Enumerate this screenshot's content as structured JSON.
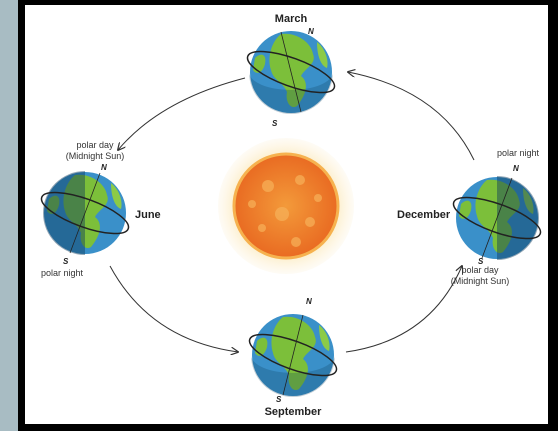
{
  "seasons": [
    {
      "label": "March",
      "north": "N",
      "south": "S"
    },
    {
      "label": "June",
      "north": "N",
      "south": "S",
      "top_note": [
        "polar day",
        "(Midnight Sun)"
      ],
      "bottom_note": [
        "polar night"
      ]
    },
    {
      "label": "September",
      "north": "N",
      "south": "S"
    },
    {
      "label": "December",
      "north": "N",
      "south": "S",
      "top_note": [
        "polar night"
      ],
      "bottom_note": [
        "polar day",
        "(Midnight Sun)"
      ]
    }
  ]
}
